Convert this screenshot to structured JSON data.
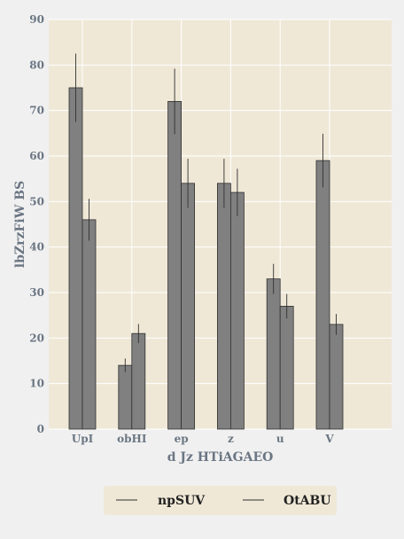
{
  "chart_data": {
    "type": "bar",
    "categories": [
      "UpI",
      "obHI",
      "ep",
      "z",
      "u",
      "V"
    ],
    "series": [
      {
        "name": "npSUV",
        "values": [
          75,
          14,
          72,
          54,
          33,
          59
        ],
        "errors": [
          7.5,
          1.5,
          7.2,
          5.4,
          3.3,
          5.9
        ]
      },
      {
        "name": "OtABU",
        "values": [
          46,
          21,
          54,
          52,
          27,
          23
        ],
        "errors": [
          4.6,
          2.1,
          5.4,
          5.2,
          2.7,
          2.3
        ]
      }
    ],
    "xlabel": "d Jz HTiAGAEO",
    "ylabel": "lbZrzFiW BS",
    "ylim": [
      0,
      90
    ],
    "yticks": [
      0,
      10,
      20,
      30,
      40,
      50,
      60,
      70,
      80,
      90
    ],
    "grid": true,
    "legend_position": "bottom",
    "colors": {
      "plot_bg": "#efe8d7",
      "bar": "#808080",
      "bar_edge": "#303030",
      "grid": "#ffffff",
      "legend_bg": "#efe8d7"
    }
  }
}
